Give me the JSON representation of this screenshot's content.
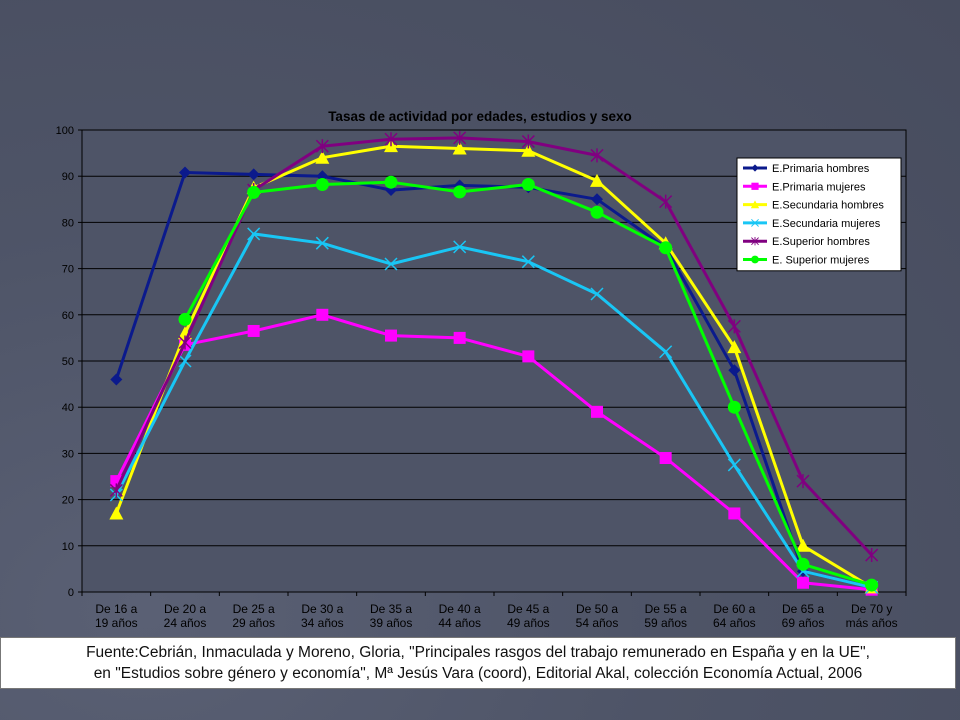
{
  "chart_data": {
    "type": "line",
    "title": "Tasas de actividad por edades, estudios y sexo",
    "xlabel": "",
    "ylabel": "",
    "ylim": [
      0,
      100
    ],
    "yticks": [
      0,
      10,
      20,
      30,
      40,
      50,
      60,
      70,
      80,
      90,
      100
    ],
    "grid": true,
    "legend_position": "top-right",
    "categories": [
      [
        "De 16 a",
        "19 años"
      ],
      [
        "De 20 a",
        "24 años"
      ],
      [
        "De 25 a",
        "29 años"
      ],
      [
        "De 30 a",
        "34 años"
      ],
      [
        "De 35 a",
        "39 años"
      ],
      [
        "De 40 a",
        "44 años"
      ],
      [
        "De 45 a",
        "49 años"
      ],
      [
        "De 50 a",
        "54 años"
      ],
      [
        "De 55 a",
        "59 años"
      ],
      [
        "De 60 a",
        "64 años"
      ],
      [
        "De 65 a",
        "69 años"
      ],
      [
        "De 70 y",
        "más años"
      ]
    ],
    "series": [
      {
        "name": "E.Primaria hombres",
        "color": "#0b1a8c",
        "marker": "diamond",
        "values": [
          46,
          90.8,
          90.4,
          90,
          87,
          88,
          87.6,
          85,
          74.5,
          48,
          4.5,
          1
        ]
      },
      {
        "name": "E.Primaria mujeres",
        "color": "#ff00ff",
        "marker": "square",
        "values": [
          24,
          53.5,
          56.5,
          60,
          55.5,
          55,
          51,
          39,
          29,
          17,
          2,
          0.5
        ]
      },
      {
        "name": "E.Secundaria hombres",
        "color": "#ffff00",
        "marker": "triangle",
        "values": [
          17,
          56,
          87.5,
          94,
          96.5,
          96,
          95.5,
          89,
          75.5,
          53,
          10,
          1
        ]
      },
      {
        "name": "E.Secundaria mujeres",
        "color": "#19c6f5",
        "marker": "x",
        "values": [
          21,
          50,
          77.5,
          75.5,
          71,
          74.7,
          71.5,
          64.5,
          52,
          27.5,
          4.5,
          1
        ]
      },
      {
        "name": "E.Superior hombres",
        "color": "#800080",
        "marker": "star",
        "values": [
          22,
          54,
          87,
          96.5,
          98,
          98.3,
          97.5,
          94.5,
          84.5,
          57.5,
          24,
          8
        ]
      },
      {
        "name": "E. Superior mujeres",
        "color": "#00ff00",
        "marker": "circle",
        "values": [
          null,
          59,
          86.5,
          88.2,
          88.7,
          86.6,
          88.2,
          82.2,
          74.5,
          40,
          6,
          1.5
        ]
      }
    ]
  },
  "source": {
    "line1": "Fuente:Cebrián, Inmaculada y Moreno, Gloria, \"Principales rasgos del trabajo remunerado en España y en la UE\",",
    "line2": "en \"Estudios sobre género y economía\", Mª Jesús Vara (coord), Editorial Akal, colección Economía Actual, 2006"
  },
  "colors": {
    "slide_background": "#4e5467",
    "plot_area": "#4e5467",
    "gridline": "#000000"
  }
}
